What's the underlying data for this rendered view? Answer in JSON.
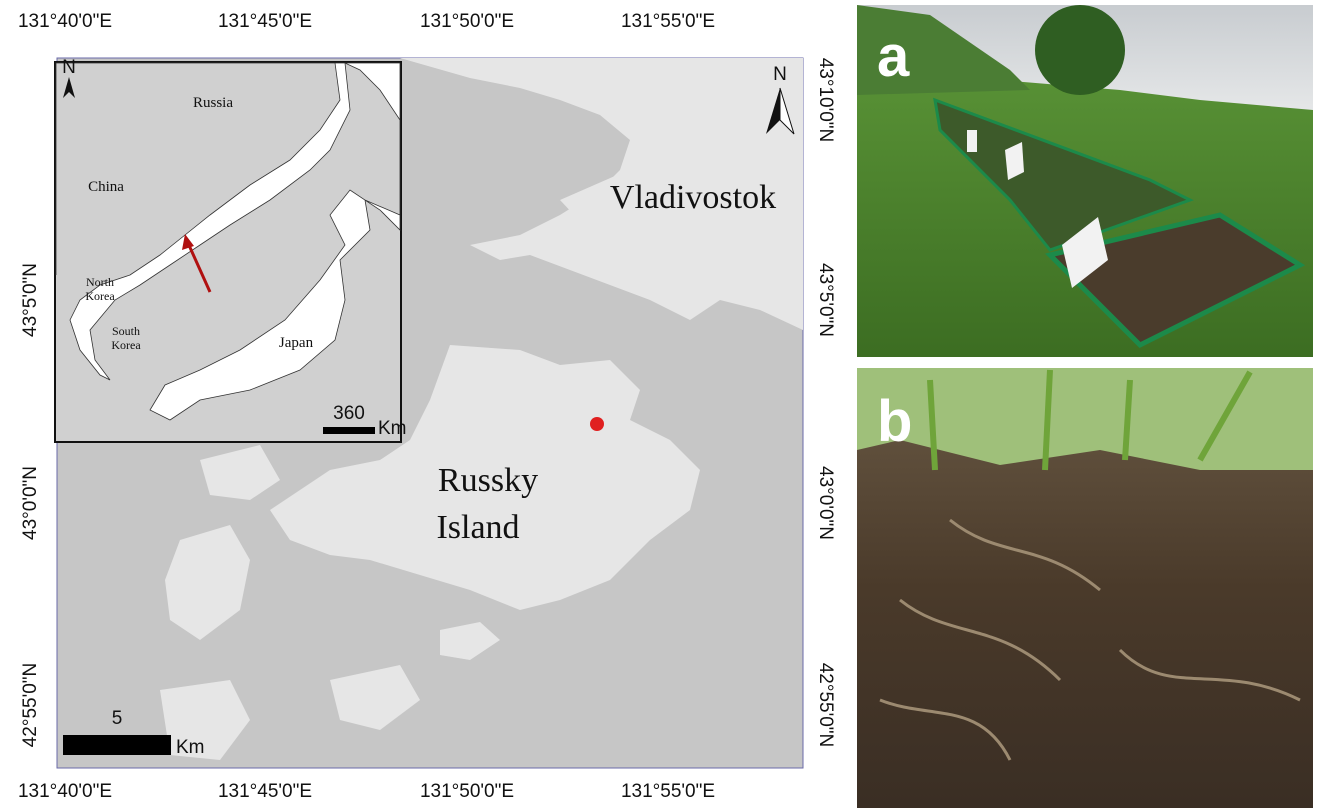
{
  "map": {
    "lon_labels": [
      "131°40'0\"E",
      "131°45'0\"E",
      "131°50'0\"E",
      "131°55'0\"E"
    ],
    "lat_labels_left": [
      "43°5'0\"N",
      "43°0'0\"N",
      "42°55'0\"N"
    ],
    "lat_labels_right": [
      "43°10'0\"N",
      "43°5'0\"N",
      "43°0'0\"N",
      "42°55'0\"N"
    ],
    "city": "Vladivostok",
    "island": [
      "Russky",
      "Island"
    ],
    "north": "N",
    "scale": {
      "value": "5",
      "unit": "Km"
    }
  },
  "inset": {
    "north": "N",
    "countries": [
      "Russia",
      "China",
      "Japan"
    ],
    "north_korea": [
      "North",
      "Korea"
    ],
    "south_korea": [
      "South",
      "Korea"
    ],
    "scale": {
      "value": "360",
      "unit": "Km"
    }
  },
  "photos": {
    "a": "a",
    "b": "b"
  }
}
